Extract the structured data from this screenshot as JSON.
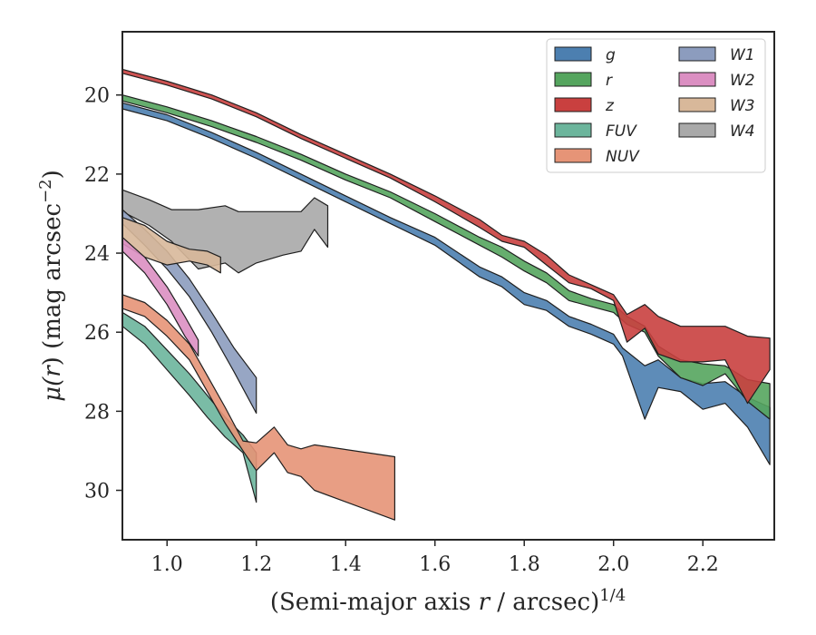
{
  "chart_data": {
    "type": "area",
    "title": "",
    "xlabel": {
      "prefix": "(Semi-major axis ",
      "var": "r",
      "suffix": " / arcsec)",
      "exponent": "1/4"
    },
    "ylabel": {
      "func": "μ(",
      "var": "r",
      "close": ")",
      "units": " (mag arcsec",
      "exponent": "−2",
      "tail": ")"
    },
    "xlim": [
      0.9,
      2.36
    ],
    "ylim": [
      31.25,
      18.4
    ],
    "y_inverted": true,
    "xticks": [
      1.0,
      1.2,
      1.4,
      1.6,
      1.8,
      2.0,
      2.2
    ],
    "yticks": [
      20,
      22,
      24,
      26,
      28,
      30
    ],
    "grid": false,
    "legend": {
      "position": "top-right",
      "columns": 2
    },
    "series": [
      {
        "name": "W4",
        "color": "#a9a9a9",
        "upper": [
          [
            0.9,
            22.4
          ],
          [
            0.96,
            22.65
          ],
          [
            1.01,
            22.9
          ],
          [
            1.07,
            22.9
          ],
          [
            1.13,
            22.8
          ],
          [
            1.16,
            22.95
          ],
          [
            1.2,
            22.95
          ],
          [
            1.26,
            22.95
          ],
          [
            1.3,
            22.95
          ],
          [
            1.33,
            22.6
          ],
          [
            1.36,
            22.8
          ]
        ],
        "lower": [
          [
            0.9,
            22.95
          ],
          [
            0.96,
            23.3
          ],
          [
            1.01,
            23.7
          ],
          [
            1.07,
            24.4
          ],
          [
            1.13,
            24.25
          ],
          [
            1.16,
            24.5
          ],
          [
            1.2,
            24.25
          ],
          [
            1.26,
            24.05
          ],
          [
            1.3,
            23.95
          ],
          [
            1.33,
            23.4
          ],
          [
            1.36,
            23.85
          ]
        ]
      },
      {
        "name": "W1",
        "color": "#8c9cbe",
        "upper": [
          [
            0.9,
            22.9
          ],
          [
            0.95,
            23.4
          ],
          [
            1.0,
            23.95
          ],
          [
            1.05,
            24.65
          ],
          [
            1.1,
            25.5
          ],
          [
            1.15,
            26.4
          ],
          [
            1.2,
            27.15
          ]
        ],
        "lower": [
          [
            0.9,
            23.25
          ],
          [
            0.95,
            23.8
          ],
          [
            1.0,
            24.4
          ],
          [
            1.05,
            25.1
          ],
          [
            1.1,
            26.0
          ],
          [
            1.15,
            27.0
          ],
          [
            1.2,
            28.05
          ]
        ]
      },
      {
        "name": "W3",
        "color": "#d8b89a",
        "upper": [
          [
            0.9,
            23.1
          ],
          [
            0.95,
            23.3
          ],
          [
            1.0,
            23.7
          ],
          [
            1.05,
            23.9
          ],
          [
            1.09,
            23.95
          ],
          [
            1.12,
            24.1
          ]
        ],
        "lower": [
          [
            0.9,
            23.75
          ],
          [
            0.95,
            24.1
          ],
          [
            1.0,
            24.3
          ],
          [
            1.05,
            24.2
          ],
          [
            1.09,
            24.3
          ],
          [
            1.12,
            24.5
          ]
        ]
      },
      {
        "name": "W2",
        "color": "#db8fc2",
        "upper": [
          [
            0.9,
            23.6
          ],
          [
            0.95,
            24.1
          ],
          [
            1.0,
            24.85
          ],
          [
            1.04,
            25.6
          ],
          [
            1.07,
            26.2
          ]
        ],
        "lower": [
          [
            0.9,
            23.95
          ],
          [
            0.95,
            24.5
          ],
          [
            1.0,
            25.3
          ],
          [
            1.04,
            26.1
          ],
          [
            1.07,
            26.6
          ]
        ]
      },
      {
        "name": "FUV",
        "color": "#6cb59c",
        "upper": [
          [
            0.9,
            25.5
          ],
          [
            0.95,
            25.85
          ],
          [
            1.0,
            26.45
          ],
          [
            1.05,
            27.05
          ],
          [
            1.09,
            27.6
          ],
          [
            1.13,
            28.15
          ],
          [
            1.17,
            28.6
          ],
          [
            1.2,
            29.05
          ]
        ],
        "lower": [
          [
            0.9,
            25.85
          ],
          [
            0.95,
            26.3
          ],
          [
            1.0,
            26.95
          ],
          [
            1.05,
            27.6
          ],
          [
            1.09,
            28.15
          ],
          [
            1.13,
            28.65
          ],
          [
            1.17,
            29.05
          ],
          [
            1.2,
            30.3
          ]
        ]
      },
      {
        "name": "NUV",
        "color": "#e69477",
        "upper": [
          [
            0.9,
            25.05
          ],
          [
            0.95,
            25.25
          ],
          [
            1.0,
            25.7
          ],
          [
            1.05,
            26.3
          ],
          [
            1.09,
            27.1
          ],
          [
            1.13,
            27.9
          ],
          [
            1.17,
            28.75
          ],
          [
            1.2,
            28.8
          ],
          [
            1.24,
            28.4
          ],
          [
            1.27,
            28.85
          ],
          [
            1.3,
            28.95
          ],
          [
            1.33,
            28.85
          ],
          [
            1.51,
            29.15
          ]
        ],
        "lower": [
          [
            0.9,
            25.4
          ],
          [
            0.95,
            25.6
          ],
          [
            1.0,
            26.1
          ],
          [
            1.05,
            26.7
          ],
          [
            1.09,
            27.5
          ],
          [
            1.13,
            28.3
          ],
          [
            1.17,
            29.0
          ],
          [
            1.2,
            29.5
          ],
          [
            1.24,
            29.05
          ],
          [
            1.27,
            29.55
          ],
          [
            1.3,
            29.65
          ],
          [
            1.33,
            30.0
          ],
          [
            1.51,
            30.75
          ]
        ]
      },
      {
        "name": "g",
        "color": "#4c7fb0",
        "upper": [
          [
            0.9,
            20.2
          ],
          [
            1.0,
            20.5
          ],
          [
            1.1,
            20.95
          ],
          [
            1.2,
            21.45
          ],
          [
            1.3,
            22.0
          ],
          [
            1.4,
            22.55
          ],
          [
            1.5,
            23.1
          ],
          [
            1.6,
            23.6
          ],
          [
            1.7,
            24.35
          ],
          [
            1.75,
            24.6
          ],
          [
            1.8,
            25.0
          ],
          [
            1.85,
            25.2
          ],
          [
            1.9,
            25.6
          ],
          [
            1.95,
            25.8
          ],
          [
            2.0,
            26.05
          ],
          [
            2.02,
            26.4
          ],
          [
            2.07,
            26.85
          ],
          [
            2.1,
            26.7
          ],
          [
            2.15,
            27.15
          ],
          [
            2.2,
            27.3
          ],
          [
            2.25,
            27.25
          ],
          [
            2.3,
            27.65
          ],
          [
            2.35,
            27.9
          ]
        ],
        "lower": [
          [
            0.9,
            20.35
          ],
          [
            1.0,
            20.65
          ],
          [
            1.1,
            21.1
          ],
          [
            1.2,
            21.6
          ],
          [
            1.3,
            22.15
          ],
          [
            1.4,
            22.7
          ],
          [
            1.5,
            23.25
          ],
          [
            1.6,
            23.8
          ],
          [
            1.7,
            24.6
          ],
          [
            1.75,
            24.85
          ],
          [
            1.8,
            25.3
          ],
          [
            1.85,
            25.45
          ],
          [
            1.9,
            25.85
          ],
          [
            1.95,
            26.05
          ],
          [
            2.0,
            26.3
          ],
          [
            2.02,
            26.6
          ],
          [
            2.07,
            28.2
          ],
          [
            2.1,
            27.4
          ],
          [
            2.15,
            27.5
          ],
          [
            2.2,
            27.95
          ],
          [
            2.25,
            27.8
          ],
          [
            2.3,
            28.4
          ],
          [
            2.35,
            29.35
          ]
        ]
      },
      {
        "name": "r",
        "color": "#55a55e",
        "upper": [
          [
            0.9,
            20.0
          ],
          [
            1.0,
            20.3
          ],
          [
            1.1,
            20.65
          ],
          [
            1.2,
            21.05
          ],
          [
            1.3,
            21.5
          ],
          [
            1.4,
            22.0
          ],
          [
            1.5,
            22.45
          ],
          [
            1.6,
            23.0
          ],
          [
            1.7,
            23.6
          ],
          [
            1.75,
            23.85
          ],
          [
            1.8,
            24.2
          ],
          [
            1.85,
            24.5
          ],
          [
            1.9,
            24.95
          ],
          [
            1.95,
            25.15
          ],
          [
            2.0,
            25.3
          ],
          [
            2.03,
            25.6
          ],
          [
            2.07,
            25.85
          ],
          [
            2.1,
            26.35
          ],
          [
            2.15,
            26.7
          ],
          [
            2.2,
            26.8
          ],
          [
            2.25,
            26.85
          ],
          [
            2.3,
            27.2
          ],
          [
            2.35,
            27.3
          ]
        ],
        "lower": [
          [
            0.9,
            20.15
          ],
          [
            1.0,
            20.45
          ],
          [
            1.1,
            20.8
          ],
          [
            1.2,
            21.2
          ],
          [
            1.3,
            21.65
          ],
          [
            1.4,
            22.15
          ],
          [
            1.5,
            22.6
          ],
          [
            1.6,
            23.2
          ],
          [
            1.7,
            23.8
          ],
          [
            1.75,
            24.1
          ],
          [
            1.8,
            24.45
          ],
          [
            1.85,
            24.75
          ],
          [
            1.9,
            25.2
          ],
          [
            1.95,
            25.35
          ],
          [
            2.0,
            25.5
          ],
          [
            2.03,
            25.8
          ],
          [
            2.07,
            26.0
          ],
          [
            2.1,
            26.6
          ],
          [
            2.15,
            27.15
          ],
          [
            2.2,
            27.35
          ],
          [
            2.25,
            27.05
          ],
          [
            2.3,
            27.75
          ],
          [
            2.35,
            28.2
          ]
        ]
      },
      {
        "name": "z",
        "color": "#c9403f",
        "upper": [
          [
            0.9,
            19.35
          ],
          [
            1.0,
            19.65
          ],
          [
            1.1,
            20.0
          ],
          [
            1.2,
            20.45
          ],
          [
            1.3,
            21.0
          ],
          [
            1.4,
            21.5
          ],
          [
            1.5,
            22.0
          ],
          [
            1.6,
            22.55
          ],
          [
            1.7,
            23.15
          ],
          [
            1.75,
            23.55
          ],
          [
            1.8,
            23.7
          ],
          [
            1.85,
            24.05
          ],
          [
            1.9,
            24.55
          ],
          [
            1.95,
            24.8
          ],
          [
            2.0,
            25.05
          ],
          [
            2.03,
            25.55
          ],
          [
            2.07,
            25.3
          ],
          [
            2.1,
            25.6
          ],
          [
            2.15,
            25.85
          ],
          [
            2.2,
            25.85
          ],
          [
            2.25,
            25.85
          ],
          [
            2.3,
            26.1
          ],
          [
            2.35,
            26.15
          ]
        ],
        "lower": [
          [
            0.9,
            19.45
          ],
          [
            1.0,
            19.75
          ],
          [
            1.1,
            20.1
          ],
          [
            1.2,
            20.55
          ],
          [
            1.3,
            21.1
          ],
          [
            1.4,
            21.6
          ],
          [
            1.5,
            22.1
          ],
          [
            1.6,
            22.7
          ],
          [
            1.7,
            23.35
          ],
          [
            1.75,
            23.7
          ],
          [
            1.8,
            23.85
          ],
          [
            1.85,
            24.3
          ],
          [
            1.9,
            24.75
          ],
          [
            1.95,
            24.9
          ],
          [
            2.0,
            25.2
          ],
          [
            2.03,
            26.25
          ],
          [
            2.07,
            25.9
          ],
          [
            2.1,
            26.55
          ],
          [
            2.15,
            26.75
          ],
          [
            2.2,
            26.75
          ],
          [
            2.25,
            26.7
          ],
          [
            2.3,
            27.8
          ],
          [
            2.35,
            26.95
          ]
        ]
      }
    ],
    "legend_columns": [
      [
        "g",
        "r",
        "z",
        "FUV",
        "NUV"
      ],
      [
        "W1",
        "W2",
        "W3",
        "W4"
      ]
    ]
  }
}
